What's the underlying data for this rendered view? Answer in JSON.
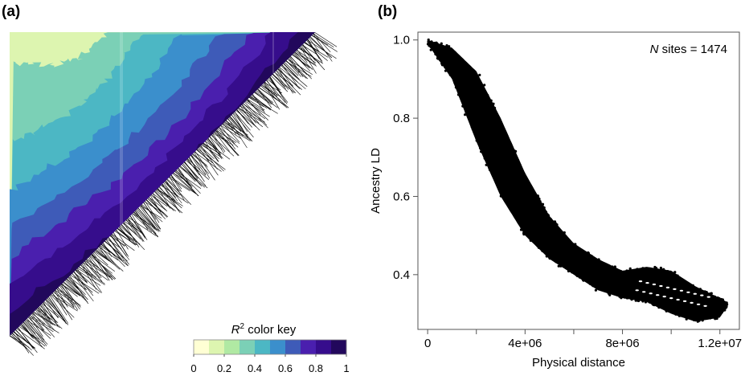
{
  "chart_data": [
    {
      "type": "heatmap",
      "panel_label": "(a)",
      "color_key": {
        "title_symbol": "R",
        "title_superscript": "2",
        "title_rest": " color key",
        "ticks": [
          "0",
          "0.2",
          "0.4",
          "0.6",
          "0.8",
          "1"
        ],
        "range": [
          0,
          1
        ],
        "bins": [
          0.05,
          0.15,
          0.25,
          0.35,
          0.45,
          0.55,
          0.65,
          0.75,
          0.85,
          0.95
        ],
        "colors": [
          "#ffffd4",
          "#ddf5b0",
          "#b0e9a3",
          "#7bd0b6",
          "#4cb7c4",
          "#3b8fcc",
          "#3e5bb8",
          "#4a1fae",
          "#360d8c",
          "#22085c"
        ]
      },
      "contour_levels": [
        0.3,
        0.4,
        0.5,
        0.6,
        0.7,
        0.8,
        0.9
      ],
      "n_site_markers": 1474
    },
    {
      "type": "scatter",
      "panel_label": "(b)",
      "annotation_italic": "N",
      "annotation_rest": " sites = 1474",
      "xlabel": "Physical distance",
      "ylabel": "Ancestry LD",
      "xlim": [
        -400000,
        12800000
      ],
      "ylim": [
        0.26,
        1.02
      ],
      "x_ticks": [
        0,
        2000000,
        4000000,
        6000000,
        8000000,
        10000000,
        12000000
      ],
      "x_tick_labels": [
        "0",
        "",
        "4e+06",
        "",
        "8e+06",
        "",
        "1.2e+07"
      ],
      "y_ticks": [
        0.4,
        0.6,
        0.8,
        1.0
      ],
      "y_tick_labels": [
        "0.4",
        "0.6",
        "0.8",
        "1.0"
      ],
      "band": {
        "x": [
          0,
          1000000,
          2000000,
          3000000,
          4000000,
          5000000,
          6000000,
          7000000,
          8000000,
          9000000,
          10000000,
          11000000,
          12000000,
          12300000
        ],
        "upper": [
          1.0,
          0.98,
          0.92,
          0.8,
          0.66,
          0.55,
          0.48,
          0.44,
          0.41,
          0.42,
          0.41,
          0.37,
          0.34,
          0.33
        ],
        "lower": [
          0.99,
          0.9,
          0.74,
          0.6,
          0.5,
          0.44,
          0.4,
          0.36,
          0.34,
          0.33,
          0.3,
          0.28,
          0.29,
          0.32
        ]
      }
    }
  ]
}
